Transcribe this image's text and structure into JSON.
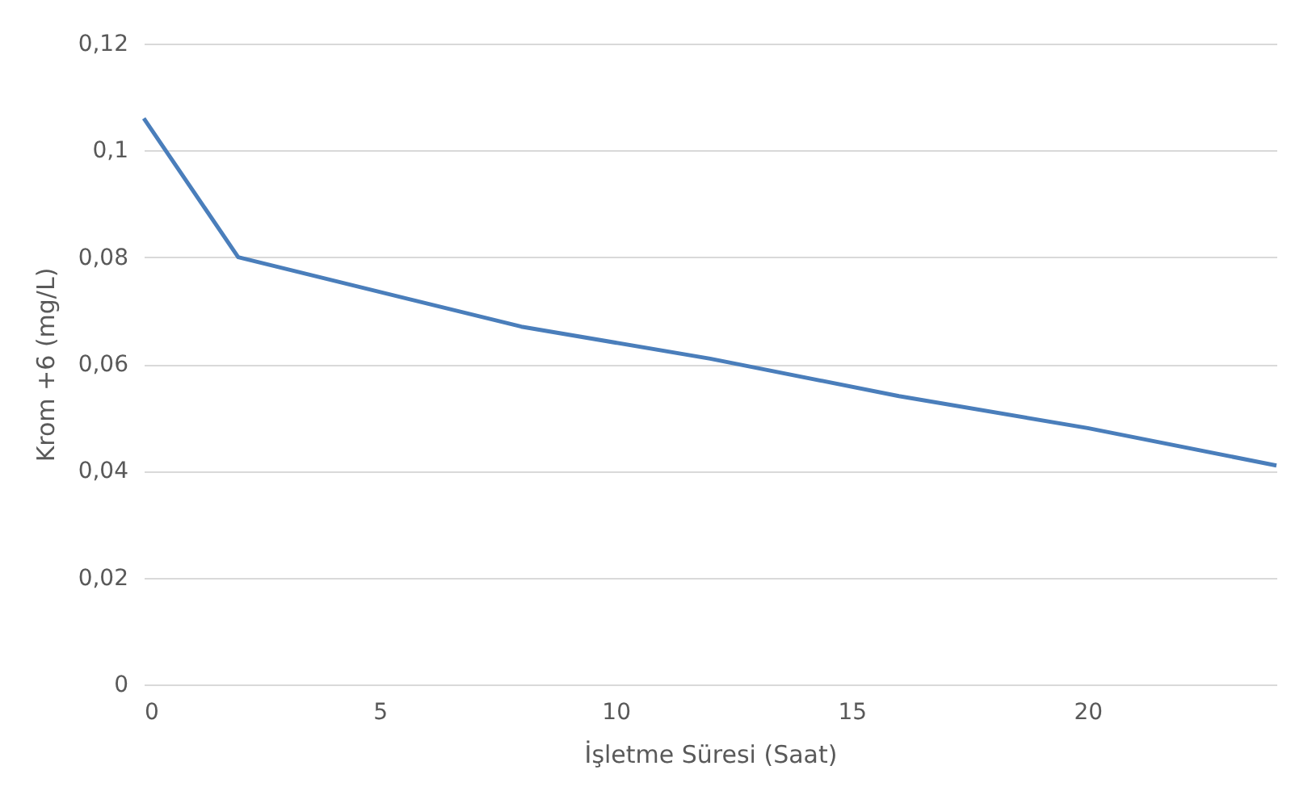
{
  "chart_data": {
    "type": "line",
    "xlabel": "İşletme Süresi (Saat)",
    "ylabel": "Krom +6  (mg/L)",
    "x": [
      0,
      2,
      8,
      12,
      16,
      20,
      24
    ],
    "series": [
      {
        "color": "#4a7ebb",
        "values": [
          0.106,
          0.08,
          0.067,
          0.061,
          0.054,
          0.048,
          0.041
        ]
      }
    ],
    "xlim": [
      0,
      24
    ],
    "xticks": [
      0,
      5,
      10,
      15,
      20
    ],
    "ylim": [
      0,
      0.12
    ],
    "yticks": [
      {
        "value": 0,
        "label": "0"
      },
      {
        "value": 0.02,
        "label": "0,02"
      },
      {
        "value": 0.04,
        "label": "0,04"
      },
      {
        "value": 0.06,
        "label": "0,06"
      },
      {
        "value": 0.08,
        "label": "0,08"
      },
      {
        "value": 0.1,
        "label": "0,1"
      },
      {
        "value": 0.12,
        "label": "0,12"
      }
    ],
    "grid": "y",
    "marker": "none",
    "line_style": "solid"
  }
}
